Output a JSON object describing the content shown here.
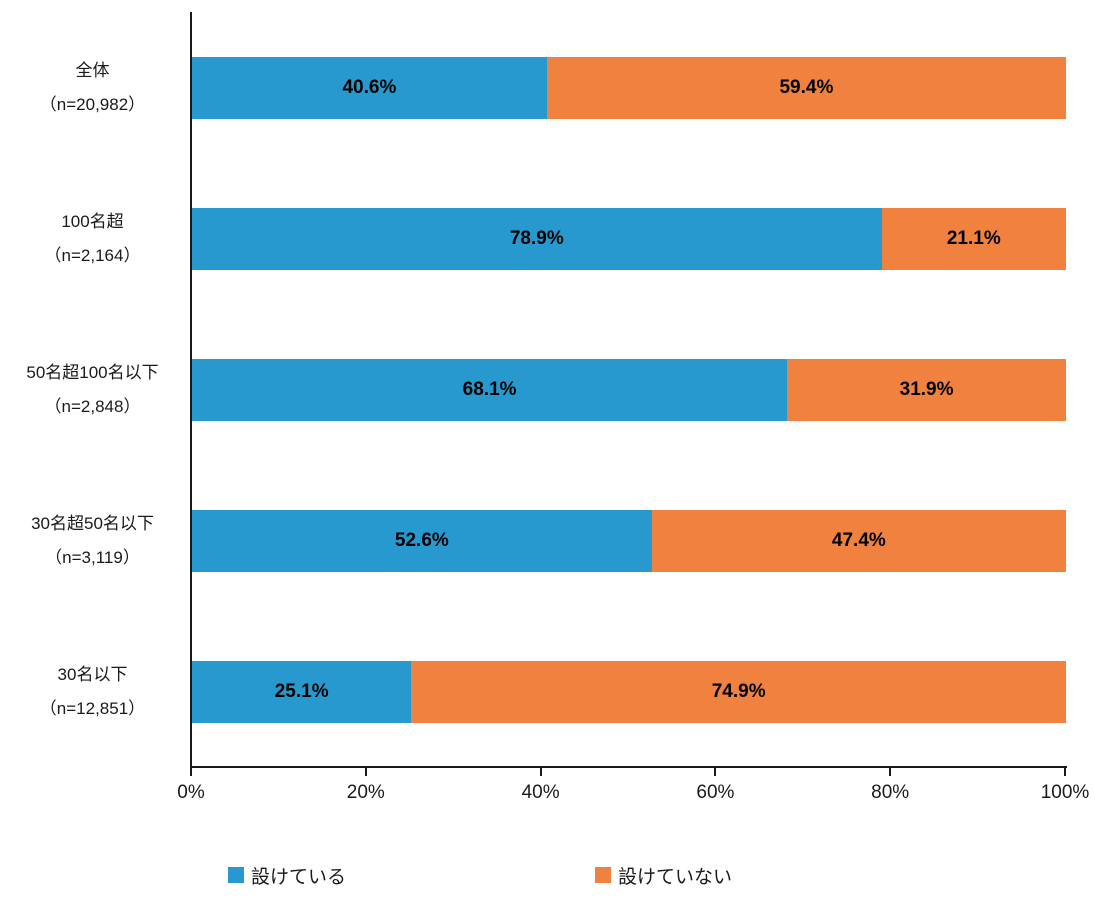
{
  "chart_data": {
    "type": "bar",
    "orientation": "horizontal",
    "stacked": true,
    "title": "",
    "xlabel": "",
    "ylabel": "",
    "xlim": [
      0,
      100
    ],
    "grid": false,
    "legend_position": "bottom",
    "categories": [
      "全体",
      "100名超",
      "50名超100名以下",
      "30名超50名以下",
      "30名以下"
    ],
    "category_sublabels": [
      "（n=20,982）",
      "（n=2,164）",
      "（n=2,848）",
      "（n=3,119）",
      "（n=12,851）"
    ],
    "series": [
      {
        "name": "設けている",
        "color": "#2799CE",
        "values": [
          40.6,
          78.9,
          68.1,
          52.6,
          25.1
        ],
        "value_labels": [
          "40.6%",
          "78.9%",
          "68.1%",
          "52.6%",
          "25.1%"
        ]
      },
      {
        "name": "設けていない",
        "color": "#F0813E",
        "values": [
          59.4,
          21.1,
          31.9,
          47.4,
          74.9
        ],
        "value_labels": [
          "59.4%",
          "21.1%",
          "31.9%",
          "47.4%",
          "74.9%"
        ]
      }
    ],
    "x_ticks": [
      {
        "value": 0,
        "label": "0%"
      },
      {
        "value": 20,
        "label": "20%"
      },
      {
        "value": 40,
        "label": "40%"
      },
      {
        "value": 60,
        "label": "60%"
      },
      {
        "value": 80,
        "label": "80%"
      },
      {
        "value": 100,
        "label": "100%"
      }
    ],
    "legend": [
      {
        "label": "設けている",
        "color": "#2799CE"
      },
      {
        "label": "設けていない",
        "color": "#F0813E"
      }
    ]
  }
}
